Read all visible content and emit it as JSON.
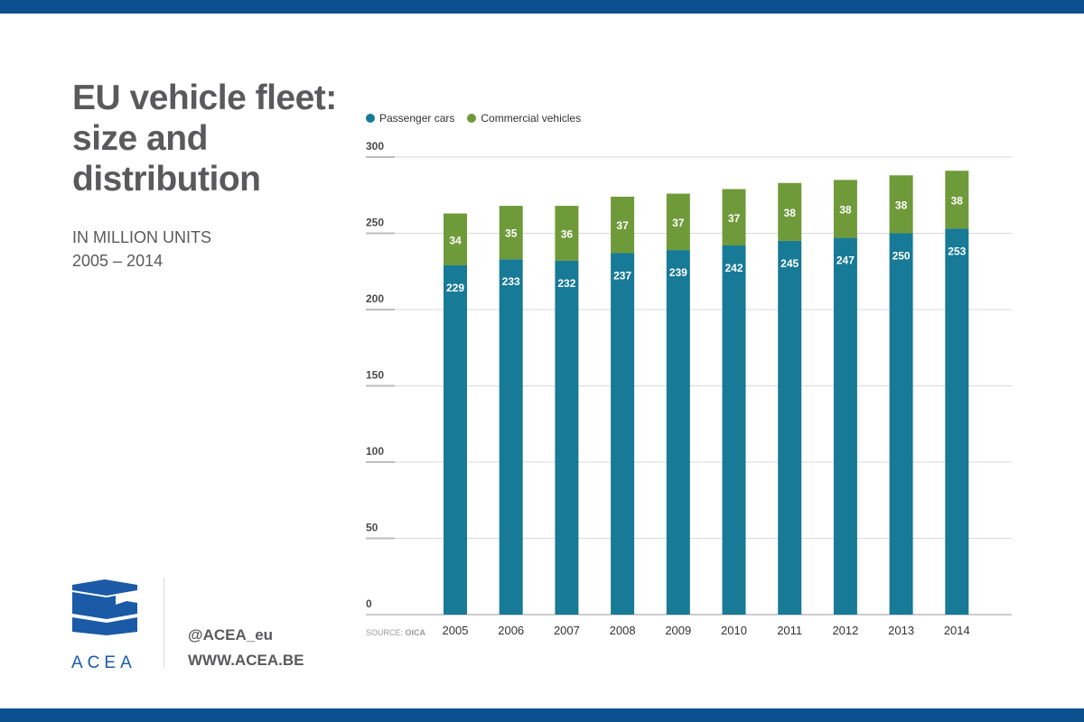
{
  "header": {
    "title": "EU vehicle fleet: size and distribution",
    "subtitle_line1": "IN MILLION UNITS",
    "subtitle_line2": "2005 – 2014"
  },
  "footer": {
    "logo_text": "ACEA",
    "twitter": "@ACEA_eu",
    "website": "WWW.ACEA.BE",
    "source_prefix": "SOURCE:",
    "source_name": "OICA"
  },
  "colors": {
    "band": "#0b4f8f",
    "passenger": "#177a96",
    "commercial": "#6f9a3a",
    "logo": "#1b5aa6",
    "grid": "#d9d9d9"
  },
  "icons": {
    "logo": "acea-logo-icon",
    "legend_marker": "circle-icon"
  },
  "chart_data": {
    "type": "bar",
    "stacked": true,
    "categories": [
      "2005",
      "2006",
      "2007",
      "2008",
      "2009",
      "2010",
      "2011",
      "2012",
      "2013",
      "2014"
    ],
    "series": [
      {
        "name": "Passenger cars",
        "values": [
          229,
          233,
          232,
          237,
          239,
          242,
          245,
          247,
          250,
          253
        ]
      },
      {
        "name": "Commercial vehicles",
        "values": [
          34,
          35,
          36,
          37,
          37,
          37,
          38,
          38,
          38,
          38
        ]
      }
    ],
    "ylim": [
      0,
      300
    ],
    "yticks": [
      0,
      50,
      100,
      150,
      200,
      250,
      300
    ],
    "grid": true,
    "legend_position": "top-left",
    "data_labels": true
  }
}
